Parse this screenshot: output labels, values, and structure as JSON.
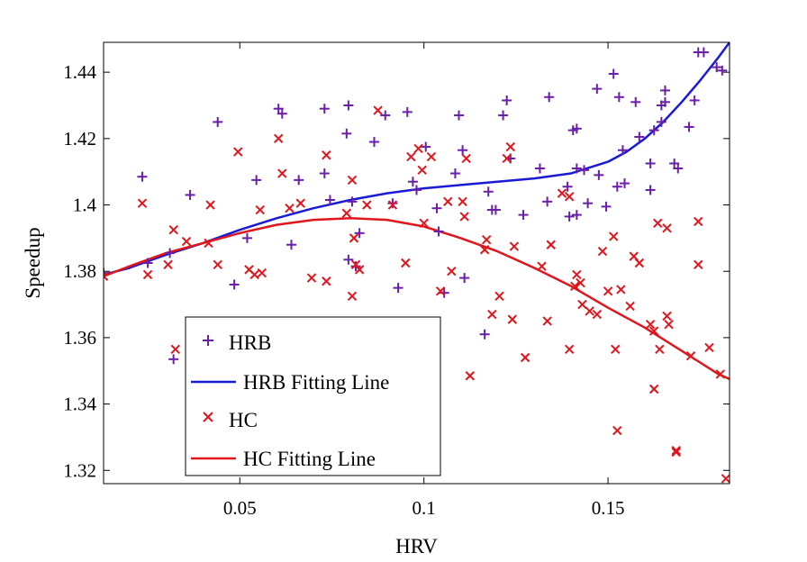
{
  "chart_data": {
    "type": "scatter",
    "title": "",
    "xlabel": "HRV",
    "ylabel": "Speedup",
    "xlim": [
      0.013,
      0.183
    ],
    "ylim": [
      1.316,
      1.449
    ],
    "x_ticks": [
      0.05,
      0.1,
      0.15
    ],
    "x_tick_labels": [
      "0.05",
      "0.1",
      "0.15"
    ],
    "y_ticks": [
      1.32,
      1.34,
      1.36,
      1.38,
      1.4,
      1.42,
      1.44
    ],
    "y_tick_labels": [
      "1.32",
      "1.34",
      "1.36",
      "1.38",
      "1.4",
      "1.42",
      "1.44"
    ],
    "grid": false,
    "legend_position": "bottom-left",
    "legend": [
      {
        "label": "HRB",
        "kind": "marker",
        "marker": "plus",
        "color": "#6a1fa8"
      },
      {
        "label": "HRB Fitting Line",
        "kind": "line",
        "color": "#1a1ad6"
      },
      {
        "label": "HC",
        "kind": "marker",
        "marker": "x",
        "color": "#e0161c"
      },
      {
        "label": "HC Fitting Line",
        "kind": "line",
        "color": "#e0161c"
      }
    ],
    "series": [
      {
        "name": "HRB",
        "marker": "plus",
        "color": "#6a1fa8",
        "points": [
          [
            0.013,
            1.3795
          ],
          [
            0.0235,
            1.4085
          ],
          [
            0.025,
            1.3825
          ],
          [
            0.031,
            1.3855
          ],
          [
            0.032,
            1.3535
          ],
          [
            0.0365,
            1.403
          ],
          [
            0.044,
            1.425
          ],
          [
            0.0485,
            1.376
          ],
          [
            0.052,
            1.39
          ],
          [
            0.0545,
            1.4075
          ],
          [
            0.0605,
            1.429
          ],
          [
            0.0615,
            1.4275
          ],
          [
            0.064,
            1.388
          ],
          [
            0.066,
            1.4075
          ],
          [
            0.073,
            1.429
          ],
          [
            0.073,
            1.4095
          ],
          [
            0.0745,
            1.4015
          ],
          [
            0.079,
            1.4215
          ],
          [
            0.0795,
            1.43
          ],
          [
            0.0795,
            1.3835
          ],
          [
            0.0805,
            1.401
          ],
          [
            0.0815,
            1.3815
          ],
          [
            0.0825,
            1.3915
          ],
          [
            0.0865,
            1.419
          ],
          [
            0.0895,
            1.427
          ],
          [
            0.0915,
            1.4005
          ],
          [
            0.093,
            1.375
          ],
          [
            0.0955,
            1.428
          ],
          [
            0.097,
            1.407
          ],
          [
            0.098,
            1.4045
          ],
          [
            0.1005,
            1.4175
          ],
          [
            0.1035,
            1.399
          ],
          [
            0.104,
            1.392
          ],
          [
            0.1055,
            1.3735
          ],
          [
            0.1085,
            1.4095
          ],
          [
            0.1095,
            1.427
          ],
          [
            0.1105,
            1.4165
          ],
          [
            0.111,
            1.378
          ],
          [
            0.1165,
            1.361
          ],
          [
            0.1175,
            1.404
          ],
          [
            0.1185,
            1.3985
          ],
          [
            0.1195,
            1.3985
          ],
          [
            0.1215,
            1.427
          ],
          [
            0.1225,
            1.4315
          ],
          [
            0.1235,
            1.414
          ],
          [
            0.127,
            1.397
          ],
          [
            0.1315,
            1.411
          ],
          [
            0.1335,
            1.401
          ],
          [
            0.134,
            1.4325
          ],
          [
            0.1395,
            1.3965
          ],
          [
            0.139,
            1.4055
          ],
          [
            0.1405,
            1.4225
          ],
          [
            0.1415,
            1.423
          ],
          [
            0.1415,
            1.397
          ],
          [
            0.1415,
            1.411
          ],
          [
            0.1435,
            1.4105
          ],
          [
            0.1445,
            1.4005
          ],
          [
            0.1475,
            1.409
          ],
          [
            0.147,
            1.435
          ],
          [
            0.1495,
            1.3995
          ],
          [
            0.1515,
            1.4395
          ],
          [
            0.1525,
            1.4055
          ],
          [
            0.153,
            1.4325
          ],
          [
            0.154,
            1.4165
          ],
          [
            0.1545,
            1.4065
          ],
          [
            0.1575,
            1.431
          ],
          [
            0.1585,
            1.4205
          ],
          [
            0.1615,
            1.4125
          ],
          [
            0.1615,
            1.4045
          ],
          [
            0.1625,
            1.4225
          ],
          [
            0.1645,
            1.425
          ],
          [
            0.1645,
            1.43
          ],
          [
            0.1655,
            1.4345
          ],
          [
            0.1655,
            1.431
          ],
          [
            0.168,
            1.4125
          ],
          [
            0.169,
            1.411
          ],
          [
            0.172,
            1.4235
          ],
          [
            0.1735,
            1.4315
          ],
          [
            0.1745,
            1.446
          ],
          [
            0.176,
            1.446
          ],
          [
            0.1795,
            1.4415
          ],
          [
            0.181,
            1.4405
          ]
        ]
      },
      {
        "name": "HC",
        "marker": "x",
        "color": "#e0161c",
        "points": [
          [
            0.013,
            1.3785
          ],
          [
            0.0235,
            1.4005
          ],
          [
            0.025,
            1.379
          ],
          [
            0.0305,
            1.382
          ],
          [
            0.032,
            1.3925
          ],
          [
            0.0325,
            1.3565
          ],
          [
            0.0355,
            1.389
          ],
          [
            0.0415,
            1.3885
          ],
          [
            0.042,
            1.4
          ],
          [
            0.044,
            1.382
          ],
          [
            0.0495,
            1.416
          ],
          [
            0.0525,
            1.3805
          ],
          [
            0.054,
            1.379
          ],
          [
            0.0555,
            1.3985
          ],
          [
            0.056,
            1.3795
          ],
          [
            0.0605,
            1.42
          ],
          [
            0.0615,
            1.4095
          ],
          [
            0.0635,
            1.399
          ],
          [
            0.0665,
            1.4005
          ],
          [
            0.0695,
            1.378
          ],
          [
            0.0735,
            1.415
          ],
          [
            0.0735,
            1.377
          ],
          [
            0.079,
            1.3975
          ],
          [
            0.0805,
            1.4075
          ],
          [
            0.0805,
            1.3725
          ],
          [
            0.081,
            1.39
          ],
          [
            0.0815,
            1.382
          ],
          [
            0.0825,
            1.3805
          ],
          [
            0.0845,
            1.4
          ],
          [
            0.0875,
            1.4285
          ],
          [
            0.0915,
            1.4
          ],
          [
            0.095,
            1.3825
          ],
          [
            0.0965,
            1.4145
          ],
          [
            0.0985,
            1.417
          ],
          [
            0.0995,
            1.4105
          ],
          [
            0.1,
            1.3945
          ],
          [
            0.102,
            1.4145
          ],
          [
            0.1045,
            1.374
          ],
          [
            0.1065,
            1.401
          ],
          [
            0.1075,
            1.38
          ],
          [
            0.1105,
            1.401
          ],
          [
            0.111,
            1.3965
          ],
          [
            0.1115,
            1.414
          ],
          [
            0.1125,
            1.3485
          ],
          [
            0.1165,
            1.3865
          ],
          [
            0.117,
            1.3895
          ],
          [
            0.1185,
            1.367
          ],
          [
            0.1205,
            1.3725
          ],
          [
            0.1225,
            1.414
          ],
          [
            0.1235,
            1.4175
          ],
          [
            0.124,
            1.3655
          ],
          [
            0.1245,
            1.3875
          ],
          [
            0.1275,
            1.354
          ],
          [
            0.132,
            1.3815
          ],
          [
            0.1335,
            1.365
          ],
          [
            0.1345,
            1.388
          ],
          [
            0.1375,
            1.4035
          ],
          [
            0.1395,
            1.4025
          ],
          [
            0.1395,
            1.3565
          ],
          [
            0.141,
            1.3755
          ],
          [
            0.1415,
            1.379
          ],
          [
            0.1425,
            1.3765
          ],
          [
            0.143,
            1.37
          ],
          [
            0.145,
            1.368
          ],
          [
            0.147,
            1.367
          ],
          [
            0.1485,
            1.386
          ],
          [
            0.15,
            1.374
          ],
          [
            0.1515,
            1.3905
          ],
          [
            0.152,
            1.3565
          ],
          [
            0.1525,
            1.332
          ],
          [
            0.1535,
            1.3745
          ],
          [
            0.156,
            1.3695
          ],
          [
            0.157,
            1.3845
          ],
          [
            0.1585,
            1.3825
          ],
          [
            0.1615,
            1.364
          ],
          [
            0.1625,
            1.3445
          ],
          [
            0.1625,
            1.362
          ],
          [
            0.1635,
            1.3945
          ],
          [
            0.164,
            1.3565
          ],
          [
            0.166,
            1.393
          ],
          [
            0.166,
            1.3665
          ],
          [
            0.1665,
            1.364
          ],
          [
            0.1685,
            1.326
          ],
          [
            0.1685,
            1.3255
          ],
          [
            0.1725,
            1.3545
          ],
          [
            0.1745,
            1.382
          ],
          [
            0.1745,
            1.395
          ],
          [
            0.1775,
            1.357
          ],
          [
            0.1805,
            1.349
          ],
          [
            0.182,
            1.3175
          ]
        ]
      }
    ],
    "fit_lines": [
      {
        "name": "HRB Fitting Line",
        "color": "#1a1ad6",
        "x": [
          0.013,
          0.02,
          0.03,
          0.04,
          0.05,
          0.06,
          0.07,
          0.08,
          0.09,
          0.1,
          0.11,
          0.12,
          0.13,
          0.14,
          0.15,
          0.155,
          0.16,
          0.165,
          0.17,
          0.175,
          0.18,
          0.183
        ],
        "y": [
          1.379,
          1.381,
          1.385,
          1.3885,
          1.3925,
          1.396,
          1.399,
          1.4015,
          1.4035,
          1.405,
          1.406,
          1.407,
          1.408,
          1.4095,
          1.413,
          1.416,
          1.42,
          1.425,
          1.431,
          1.4375,
          1.4445,
          1.449
        ]
      },
      {
        "name": "HC Fitting Line",
        "color": "#e0161c",
        "x": [
          0.013,
          0.02,
          0.03,
          0.04,
          0.05,
          0.06,
          0.07,
          0.08,
          0.09,
          0.1,
          0.11,
          0.12,
          0.13,
          0.14,
          0.15,
          0.16,
          0.17,
          0.175,
          0.18,
          0.183
        ],
        "y": [
          1.3785,
          1.3815,
          1.3855,
          1.3885,
          1.3915,
          1.394,
          1.3955,
          1.396,
          1.3955,
          1.3935,
          1.39,
          1.386,
          1.381,
          1.3755,
          1.369,
          1.363,
          1.356,
          1.3525,
          1.349,
          1.3475
        ]
      }
    ]
  }
}
